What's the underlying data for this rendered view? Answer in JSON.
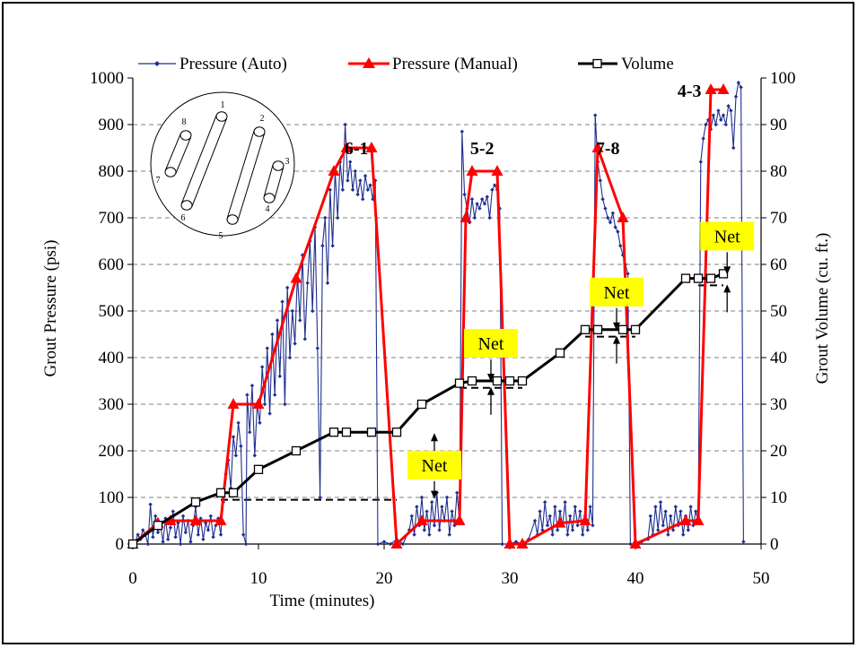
{
  "chart_data": {
    "type": "line",
    "xlabel": "Time (minutes)",
    "ylabel_left": "Grout Pressure (psi)",
    "ylabel_right": "Grout Volume (cu. ft.)",
    "xlim": [
      0,
      50
    ],
    "ylim_left": [
      0,
      1000
    ],
    "ylim_right": [
      0,
      100
    ],
    "x_ticks": [
      0,
      10,
      20,
      30,
      40,
      50
    ],
    "y_ticks_left": [
      0,
      100,
      200,
      300,
      400,
      500,
      600,
      700,
      800,
      900,
      1000
    ],
    "y_ticks_right": [
      0,
      10,
      20,
      30,
      40,
      50,
      60,
      70,
      80,
      90,
      100
    ],
    "grid": "horizontal dashed",
    "legend_position": "top",
    "series": [
      {
        "name": "Pressure (Auto)",
        "axis": "left",
        "color": "#1F2F8F",
        "marker": "diamond",
        "points": [
          [
            0,
            0
          ],
          [
            0.2,
            5
          ],
          [
            0.4,
            20
          ],
          [
            0.6,
            10
          ],
          [
            0.8,
            30
          ],
          [
            1,
            20
          ],
          [
            1.2,
            0
          ],
          [
            1.4,
            85
          ],
          [
            1.6,
            15
          ],
          [
            1.8,
            60
          ],
          [
            2,
            25
          ],
          [
            2.2,
            40
          ],
          [
            2.4,
            5
          ],
          [
            2.6,
            55
          ],
          [
            2.8,
            10
          ],
          [
            3,
            35
          ],
          [
            3.2,
            70
          ],
          [
            3.4,
            15
          ],
          [
            3.6,
            45
          ],
          [
            3.8,
            0
          ],
          [
            4,
            60
          ],
          [
            4.2,
            25
          ],
          [
            4.4,
            50
          ],
          [
            4.6,
            5
          ],
          [
            4.8,
            40
          ],
          [
            5,
            80
          ],
          [
            5.2,
            20
          ],
          [
            5.4,
            55
          ],
          [
            5.6,
            10
          ],
          [
            5.8,
            45
          ],
          [
            6,
            30
          ],
          [
            6.2,
            60
          ],
          [
            6.4,
            15
          ],
          [
            6.6,
            40
          ],
          [
            6.8,
            55
          ],
          [
            7,
            20
          ],
          [
            7.2,
            90
          ],
          [
            7.4,
            150
          ],
          [
            7.6,
            180
          ],
          [
            7.8,
            120
          ],
          [
            8,
            230
          ],
          [
            8.2,
            190
          ],
          [
            8.4,
            260
          ],
          [
            8.6,
            210
          ],
          [
            8.8,
            20
          ],
          [
            9,
            0
          ],
          [
            9.1,
            320
          ],
          [
            9.3,
            240
          ],
          [
            9.5,
            340
          ],
          [
            9.7,
            190
          ],
          [
            9.9,
            300
          ],
          [
            10.1,
            260
          ],
          [
            10.3,
            380
          ],
          [
            10.5,
            300
          ],
          [
            10.7,
            420
          ],
          [
            10.9,
            280
          ],
          [
            11.1,
            450
          ],
          [
            11.3,
            320
          ],
          [
            11.5,
            480
          ],
          [
            11.7,
            360
          ],
          [
            11.9,
            520
          ],
          [
            12.1,
            300
          ],
          [
            12.3,
            550
          ],
          [
            12.5,
            400
          ],
          [
            12.7,
            500
          ],
          [
            12.9,
            430
          ],
          [
            13.1,
            580
          ],
          [
            13.3,
            480
          ],
          [
            13.5,
            620
          ],
          [
            13.7,
            440
          ],
          [
            13.9,
            560
          ],
          [
            14.1,
            650
          ],
          [
            14.3,
            500
          ],
          [
            14.5,
            680
          ],
          [
            14.7,
            420
          ],
          [
            14.9,
            100
          ],
          [
            15.1,
            640
          ],
          [
            15.3,
            700
          ],
          [
            15.5,
            560
          ],
          [
            15.7,
            760
          ],
          [
            15.9,
            640
          ],
          [
            16.1,
            800
          ],
          [
            16.3,
            700
          ],
          [
            16.5,
            820
          ],
          [
            16.7,
            760
          ],
          [
            16.9,
            900
          ],
          [
            17.1,
            780
          ],
          [
            17.3,
            820
          ],
          [
            17.5,
            760
          ],
          [
            17.7,
            800
          ],
          [
            17.9,
            750
          ],
          [
            18.1,
            780
          ],
          [
            18.3,
            740
          ],
          [
            18.5,
            790
          ],
          [
            18.7,
            760
          ],
          [
            18.9,
            770
          ],
          [
            19.1,
            740
          ],
          [
            19.3,
            780
          ],
          [
            19.5,
            0
          ],
          [
            20,
            5
          ],
          [
            20.5,
            0
          ],
          [
            21,
            10
          ],
          [
            21.5,
            0
          ],
          [
            22,
            30
          ],
          [
            22.2,
            60
          ],
          [
            22.4,
            20
          ],
          [
            22.6,
            80
          ],
          [
            22.8,
            40
          ],
          [
            23,
            100
          ],
          [
            23.2,
            30
          ],
          [
            23.4,
            70
          ],
          [
            23.6,
            20
          ],
          [
            23.8,
            90
          ],
          [
            24,
            40
          ],
          [
            24.2,
            110
          ],
          [
            24.4,
            30
          ],
          [
            24.6,
            80
          ],
          [
            24.8,
            50
          ],
          [
            25,
            100
          ],
          [
            25.2,
            20
          ],
          [
            25.4,
            70
          ],
          [
            25.6,
            40
          ],
          [
            25.8,
            110
          ],
          [
            26,
            50
          ],
          [
            26.2,
            885
          ],
          [
            26.4,
            750
          ],
          [
            26.6,
            720
          ],
          [
            26.8,
            690
          ],
          [
            27,
            740
          ],
          [
            27.2,
            700
          ],
          [
            27.4,
            730
          ],
          [
            27.6,
            720
          ],
          [
            27.8,
            740
          ],
          [
            28,
            730
          ],
          [
            28.2,
            745
          ],
          [
            28.4,
            700
          ],
          [
            28.6,
            760
          ],
          [
            28.8,
            770
          ],
          [
            29,
            760
          ],
          [
            29.2,
            720
          ],
          [
            29.4,
            0
          ],
          [
            30,
            0
          ],
          [
            30.5,
            5
          ],
          [
            31,
            0
          ],
          [
            31.5,
            10
          ],
          [
            32,
            50
          ],
          [
            32.2,
            20
          ],
          [
            32.4,
            70
          ],
          [
            32.6,
            30
          ],
          [
            32.8,
            90
          ],
          [
            33,
            40
          ],
          [
            33.2,
            60
          ],
          [
            33.4,
            20
          ],
          [
            33.6,
            80
          ],
          [
            33.8,
            30
          ],
          [
            34,
            70
          ],
          [
            34.2,
            40
          ],
          [
            34.4,
            90
          ],
          [
            34.6,
            20
          ],
          [
            34.8,
            60
          ],
          [
            35,
            30
          ],
          [
            35.2,
            80
          ],
          [
            35.4,
            40
          ],
          [
            35.6,
            70
          ],
          [
            35.8,
            20
          ],
          [
            36,
            60
          ],
          [
            36.2,
            30
          ],
          [
            36.4,
            80
          ],
          [
            36.6,
            40
          ],
          [
            36.8,
            920
          ],
          [
            37,
            820
          ],
          [
            37.2,
            780
          ],
          [
            37.4,
            740
          ],
          [
            37.6,
            720
          ],
          [
            37.8,
            700
          ],
          [
            38,
            690
          ],
          [
            38.2,
            710
          ],
          [
            38.4,
            680
          ],
          [
            38.6,
            670
          ],
          [
            38.8,
            640
          ],
          [
            39,
            620
          ],
          [
            39.2,
            600
          ],
          [
            39.4,
            580
          ],
          [
            39.6,
            0
          ],
          [
            40,
            0
          ],
          [
            40.5,
            5
          ],
          [
            41,
            10
          ],
          [
            41.2,
            60
          ],
          [
            41.4,
            20
          ],
          [
            41.6,
            80
          ],
          [
            41.8,
            30
          ],
          [
            42,
            90
          ],
          [
            42.2,
            40
          ],
          [
            42.4,
            70
          ],
          [
            42.6,
            20
          ],
          [
            42.8,
            60
          ],
          [
            43,
            30
          ],
          [
            43.2,
            80
          ],
          [
            43.4,
            40
          ],
          [
            43.6,
            70
          ],
          [
            43.8,
            20
          ],
          [
            44,
            60
          ],
          [
            44.2,
            30
          ],
          [
            44.4,
            80
          ],
          [
            44.6,
            40
          ],
          [
            44.8,
            70
          ],
          [
            45,
            50
          ],
          [
            45.2,
            820
          ],
          [
            45.4,
            870
          ],
          [
            45.6,
            900
          ],
          [
            45.8,
            910
          ],
          [
            46,
            890
          ],
          [
            46.2,
            920
          ],
          [
            46.4,
            900
          ],
          [
            46.6,
            930
          ],
          [
            46.8,
            910
          ],
          [
            47,
            920
          ],
          [
            47.2,
            900
          ],
          [
            47.4,
            940
          ],
          [
            47.6,
            930
          ],
          [
            47.8,
            850
          ],
          [
            48,
            960
          ],
          [
            48.2,
            990
          ],
          [
            48.4,
            980
          ],
          [
            48.6,
            5
          ]
        ]
      },
      {
        "name": "Pressure (Manual)",
        "axis": "left",
        "color": "#FF0000",
        "marker": "triangle",
        "points": [
          [
            0,
            0
          ],
          [
            2,
            45
          ],
          [
            3,
            50
          ],
          [
            5,
            50
          ],
          [
            7,
            50
          ],
          [
            8,
            300
          ],
          [
            10,
            300
          ],
          [
            13,
            570
          ],
          [
            16,
            800
          ],
          [
            17,
            850
          ],
          [
            19,
            850
          ],
          [
            21,
            0
          ],
          [
            23,
            50
          ],
          [
            26,
            50
          ],
          [
            26.5,
            700
          ],
          [
            27,
            800
          ],
          [
            29,
            800
          ],
          [
            30,
            0
          ],
          [
            31,
            0
          ],
          [
            34,
            45
          ],
          [
            36,
            50
          ],
          [
            37,
            850
          ],
          [
            39,
            700
          ],
          [
            40,
            0
          ],
          [
            44,
            50
          ],
          [
            45,
            50
          ],
          [
            46,
            975
          ],
          [
            47,
            975
          ]
        ]
      },
      {
        "name": "Volume",
        "axis": "right",
        "color": "#000000",
        "marker": "square",
        "points": [
          [
            0,
            0
          ],
          [
            2,
            4
          ],
          [
            5,
            9
          ],
          [
            7,
            11
          ],
          [
            8,
            11
          ],
          [
            10,
            16
          ],
          [
            13,
            20
          ],
          [
            16,
            24
          ],
          [
            17,
            24
          ],
          [
            19,
            24
          ],
          [
            21,
            24
          ],
          [
            23,
            30
          ],
          [
            26,
            34.5
          ],
          [
            27,
            35
          ],
          [
            29,
            35
          ],
          [
            30,
            35
          ],
          [
            31,
            35
          ],
          [
            34,
            41
          ],
          [
            36,
            46
          ],
          [
            37,
            46
          ],
          [
            39,
            46
          ],
          [
            40,
            46
          ],
          [
            44,
            57
          ],
          [
            45,
            57
          ],
          [
            46,
            57
          ],
          [
            47,
            58
          ]
        ]
      }
    ],
    "pair_labels": [
      {
        "text": "6-1",
        "x": 17.8,
        "y": 900
      },
      {
        "text": "5-2",
        "x": 27.8,
        "y": 900
      },
      {
        "text": "7-8",
        "x": 37.8,
        "y": 900
      },
      {
        "text": "4-3",
        "x": 46,
        "y": 975
      }
    ],
    "net_annotations": [
      {
        "label": "Net",
        "x": 24,
        "top_volume": 24,
        "bottom_volume": 9.5,
        "dashed_from": 7,
        "dashed_to": 21
      },
      {
        "label": "Net",
        "x": 28.5,
        "top_volume": 35,
        "bottom_volume": 33.5,
        "dashed_from": 26,
        "dashed_to": 31
      },
      {
        "label": "Net",
        "x": 38.5,
        "top_volume": 46,
        "bottom_volume": 44.5,
        "dashed_from": 36,
        "dashed_to": 40
      },
      {
        "label": "Net",
        "x": 47.3,
        "top_volume": 58,
        "bottom_volume": 55.5,
        "dashed_from": 45,
        "dashed_to": 47
      }
    ],
    "inset_hole_numbers": [
      "1",
      "2",
      "3",
      "4",
      "5",
      "6",
      "7",
      "8"
    ]
  },
  "colors": {
    "auto": "#1F2F8F",
    "manual": "#FF0000",
    "volume": "#000000",
    "net_box": "#FFFF00"
  }
}
